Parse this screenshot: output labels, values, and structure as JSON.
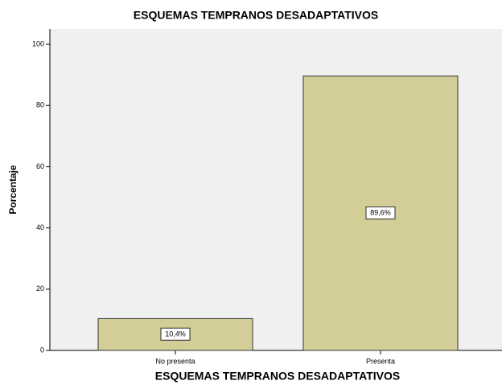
{
  "chart_data": {
    "type": "bar",
    "title": "ESQUEMAS TEMPRANOS DESADAPTATIVOS",
    "x_label": "ESQUEMAS TEMPRANOS DESADAPTATIVOS",
    "y_label": "Porcentaje",
    "categories": [
      "No presenta",
      "Presenta"
    ],
    "values": [
      10.4,
      89.6
    ],
    "value_labels": [
      "10,4%",
      "89,6%"
    ],
    "color": "#d3ce97",
    "ylim": [
      0,
      105
    ],
    "yticks": [
      0,
      20,
      40,
      60,
      80,
      100
    ],
    "grid": false
  }
}
